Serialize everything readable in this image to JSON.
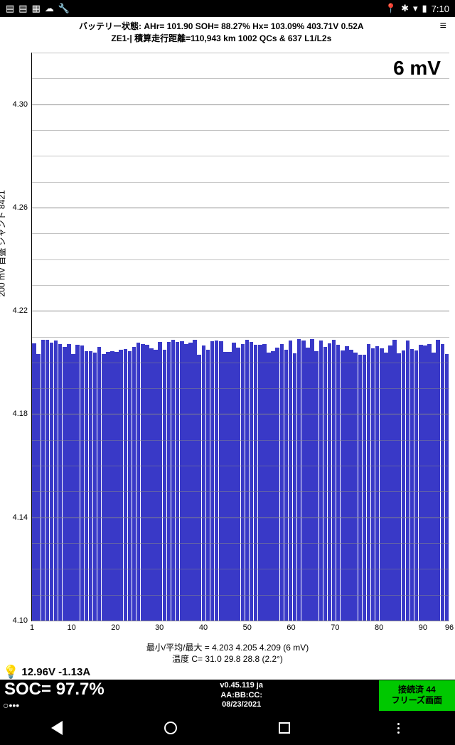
{
  "status_bar": {
    "time": "7:10",
    "left_icons": [
      "📰",
      "🖼",
      "📷",
      "☁",
      "🔧"
    ],
    "right_icons": [
      "📍",
      "✱",
      "📶",
      "🔋"
    ]
  },
  "header": {
    "line1": "バッテリー状態:  AHr= 101.90   SOH= 88.27%   Hx= 103.09%   403.71V 0.52A",
    "line2": "ZE1-|          積算走行距離=110,943 km  1002 QCs & 637 L1/L2s",
    "menu": "≡"
  },
  "chart": {
    "type": "bar",
    "y_label": "200 mV 目盛  シャント 8421",
    "annotation": "6 mV",
    "ylim": [
      4.1,
      4.32
    ],
    "y_ticks": [
      4.1,
      4.14,
      4.18,
      4.22,
      4.26,
      4.3
    ],
    "x_ticks": [
      1,
      10,
      20,
      30,
      40,
      50,
      60,
      70,
      80,
      90,
      96
    ],
    "n_bars": 96,
    "bar_min": 4.203,
    "bar_max": 4.209,
    "bar_avg": 4.205,
    "bar_color": "#3939c7",
    "grid_color": "#888888",
    "background": "#ffffff"
  },
  "footer": {
    "line1": "最小/平均/最大 = 4.203 4.205 4.209  (6 mV)",
    "line2": "温度 C= 31.0   29.8  28.8   (2.2°)"
  },
  "bulb_row": {
    "text": "12.96V -1.13A"
  },
  "soc_bar": {
    "soc": "SOC= 97.7%",
    "dots": "○•••",
    "version": "v0.45.119 ja",
    "mac": "AA:BB:CC:",
    "date": "08/23/2021",
    "connected_line1": "接続済 44",
    "connected_line2": "フリーズ画面"
  }
}
